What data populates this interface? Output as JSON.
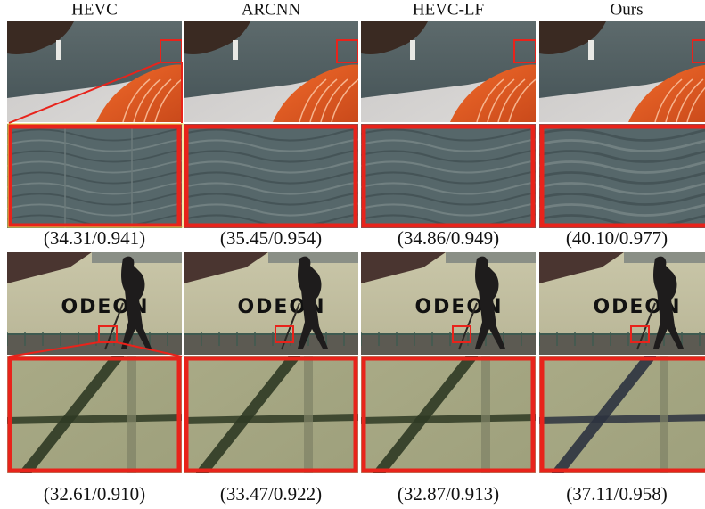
{
  "headers": [
    "HEVC",
    "ARCNN",
    "HEVC-LF",
    "Ours"
  ],
  "rows": [
    {
      "captions": [
        "(34.31/0.941)",
        "(35.45/0.954)",
        "(34.86/0.949)",
        "(40.10/0.977)"
      ]
    },
    {
      "captions": [
        "(32.61/0.910)",
        "(33.47/0.922)",
        "(32.87/0.913)",
        "(37.11/0.958)"
      ]
    }
  ]
}
